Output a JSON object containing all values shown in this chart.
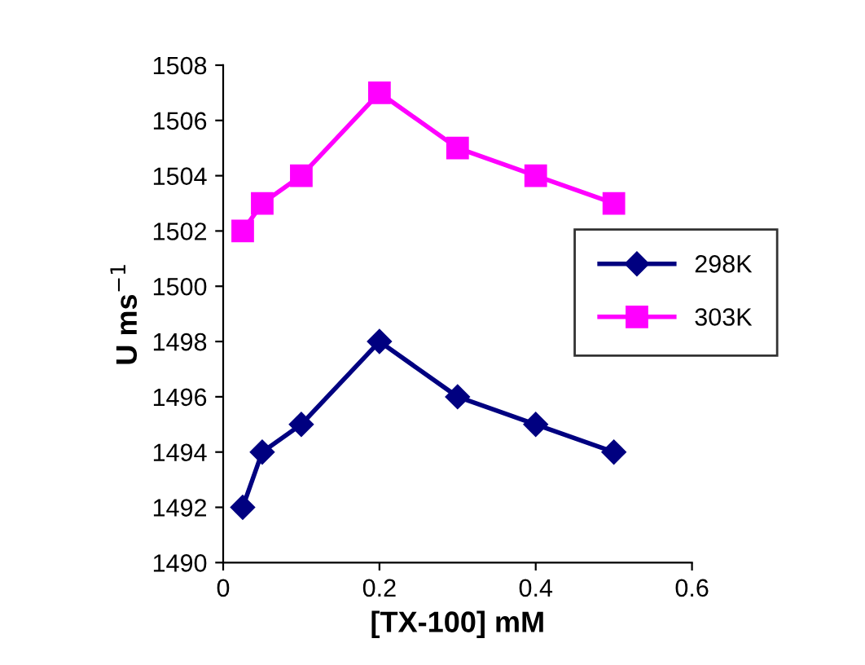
{
  "chart_data": {
    "type": "line",
    "xlabel": "[TX-100] mM",
    "ylabel": "U ms$^{−1}$",
    "x": [
      0.025,
      0.05,
      0.1,
      0.2,
      0.3,
      0.4,
      0.5
    ],
    "series": [
      {
        "name": "298K",
        "color": "#000080",
        "marker": "diamond",
        "values": [
          1492,
          1494,
          1495,
          1498,
          1496,
          1495,
          1494
        ]
      },
      {
        "name": "303K",
        "color": "#ff00ff",
        "marker": "square",
        "values": [
          1502,
          1503,
          1504,
          1507,
          1505,
          1504,
          1503
        ]
      }
    ],
    "xlim": [
      0,
      0.6
    ],
    "xticks": [
      0,
      0.2,
      0.4,
      0.6
    ],
    "ylim": [
      1490,
      1508
    ],
    "yticks": [
      1490,
      1492,
      1494,
      1496,
      1498,
      1500,
      1502,
      1504,
      1506,
      1508
    ],
    "grid": false,
    "legend": "right",
    "line_style": "solid"
  }
}
